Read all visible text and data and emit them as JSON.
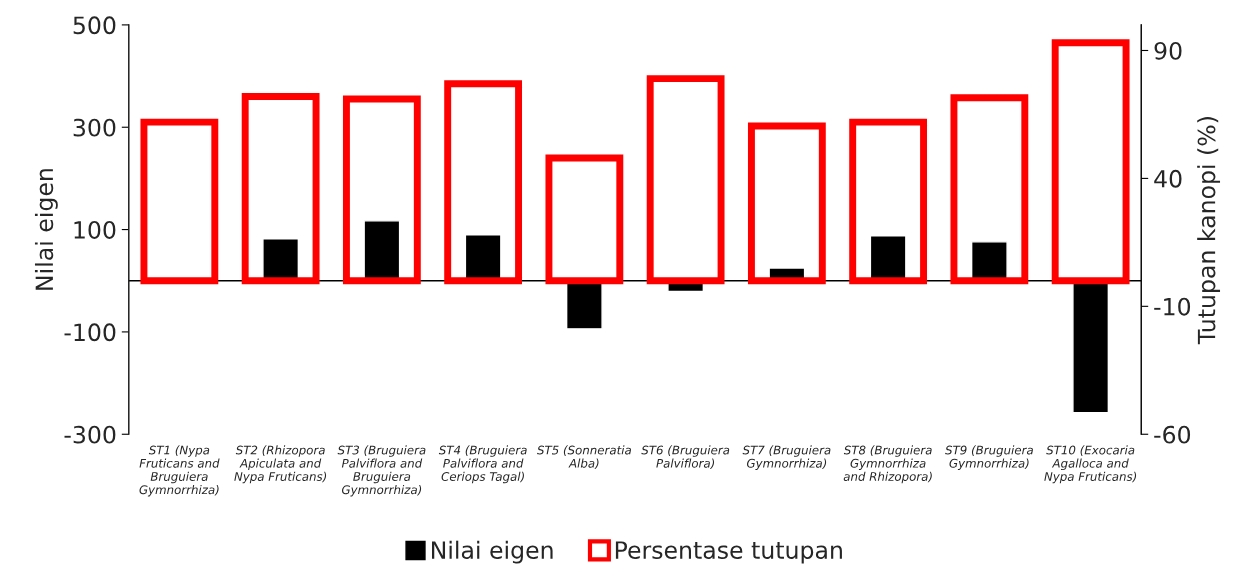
{
  "chart_data": {
    "type": "bar",
    "categories": [
      "ST1 (Nypa\nFruticans and\nBruguiera\nGymnorrhiza)",
      "ST2 (Rhizopora\nApiculata and\nNypa Fruticans)",
      "ST3 (Bruguiera\nPalviflora and\nBruguiera\nGymnorrhiza)",
      "ST4 (Bruguiera\nPalviflora and\nCeriops Tagal)",
      "ST5 (Sonneratia\nAlba)",
      "ST6 (Bruguiera\nPalviflora)",
      "ST7 (Bruguiera\nGymnorrhiza)",
      "ST8 (Bruguiera\nGymnorrhiza\nand Rhizopora)",
      "ST9 (Bruguiera\nGymnorrhiza)",
      "ST10 (Exocaria\nAgalloca and\nNypa Fruticans)"
    ],
    "series": [
      {
        "name": "Nilai eigen",
        "color": "#000000",
        "values": [
          null,
          82,
          117,
          90,
          -94,
          -21,
          25,
          88,
          76,
          -258
        ]
      },
      {
        "name": "Persentase tutupan",
        "color": "#ff0000",
        "axis": "y2",
        "values": [
          62,
          72,
          71,
          77,
          48,
          79,
          60.5,
          62,
          71.5,
          93
        ]
      }
    ],
    "ylabel": "Nilai eigen",
    "y2label": "Tutupan kanopi (%)",
    "ylim": [
      -300,
      500
    ],
    "yticks": [
      -300,
      -100,
      100,
      300,
      500
    ],
    "y2lim": [
      -60,
      100
    ],
    "y2ticks": [
      -60,
      -10,
      40,
      90
    ],
    "ref_lines": [
      {
        "axis": "y",
        "value": 0,
        "color": "#000000"
      }
    ],
    "grid": false,
    "legend": "bottom"
  }
}
